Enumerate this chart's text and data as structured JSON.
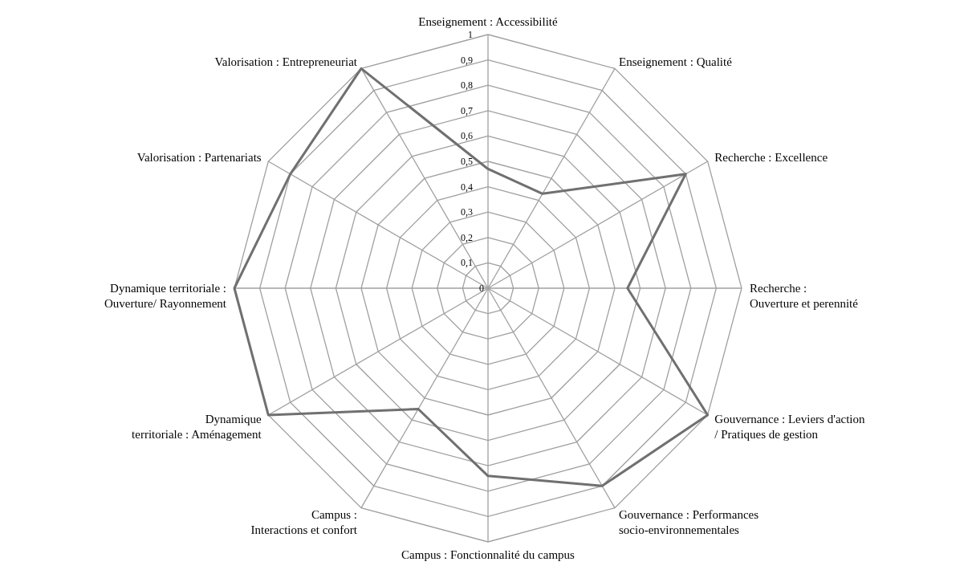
{
  "chart_data": {
    "type": "radar",
    "categories": [
      "Enseignement : Accessibilité",
      "Enseignement : Qualité",
      "Recherche : Excellence",
      "Recherche : Ouverture et perennité",
      "Gouvernance : Leviers d'action / Pratiques de gestion",
      "Gouvernance : Performances socio-environnementales",
      "Campus : Fonctionnalité du campus",
      "Campus : Interactions et confort",
      "Dynamique territoriale : Aménagement",
      "Dynamique territoriale : Ouverture/ Rayonnement",
      "Valorisation : Partenariats",
      "Valorisation : Entrepreneuriat"
    ],
    "series": [
      {
        "color": "#707070",
        "values": [
          0.47,
          0.43,
          0.9,
          0.55,
          1,
          0.9,
          0.74,
          0.55,
          1,
          1,
          0.9,
          1
        ]
      }
    ],
    "ylim": [
      0,
      1
    ],
    "yticks": [
      0,
      {
        "value": 0.1,
        "label": "0,1"
      },
      {
        "value": 0.2,
        "label": "0,2"
      },
      {
        "value": 0.3,
        "label": "0,3"
      },
      {
        "value": 0.4,
        "label": "0,4"
      },
      {
        "value": 0.5,
        "label": "0,5"
      },
      {
        "value": 0.6,
        "label": "0,6"
      },
      {
        "value": 0.7,
        "label": "0,7"
      },
      {
        "value": 0.8,
        "label": "0,8"
      },
      {
        "value": 0.9,
        "label": "0,9"
      },
      1
    ],
    "grid": true,
    "marker": "none",
    "line_style": "solid"
  }
}
